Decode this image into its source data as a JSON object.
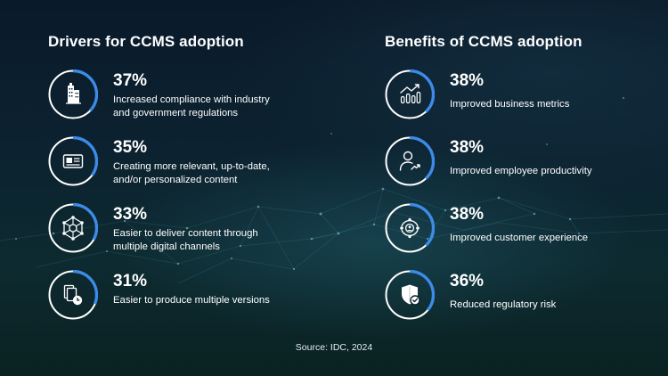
{
  "source": "Source: IDC, 2024",
  "colors": {
    "accent": "#3d8be8",
    "ring_base": "#ffffff"
  },
  "chart_data": [
    {
      "type": "bar",
      "title": "Drivers for CCMS adoption",
      "unit": "%",
      "categories": [
        "Increased compliance with industry and government regulations",
        "Creating more relevant, up-to-date, and/or personalized content",
        "Easier to deliver content through multiple digital channels",
        "Easier to produce multiple versions"
      ],
      "values": [
        37,
        35,
        33,
        31
      ],
      "labels": [
        "37%",
        "35%",
        "33%",
        "31%"
      ],
      "icons": [
        "building-icon",
        "document-card-icon",
        "network-hub-icon",
        "documents-clock-icon"
      ],
      "lines": [
        [
          "Increased compliance with industry",
          "and government regulations"
        ],
        [
          "Creating more relevant, up-to-date,",
          "and/or personalized content"
        ],
        [
          "Easier to deliver content through",
          "multiple digital channels"
        ],
        [
          "Easier to produce multiple versions"
        ]
      ]
    },
    {
      "type": "bar",
      "title": "Benefits of CCMS adoption",
      "unit": "%",
      "categories": [
        "Improved business metrics",
        "Improved employee productivity",
        "Improved customer experience",
        "Reduced regulatory risk"
      ],
      "values": [
        38,
        38,
        38,
        36
      ],
      "labels": [
        "38%",
        "38%",
        "38%",
        "36%"
      ],
      "icons": [
        "bar-chart-trend-icon",
        "person-growth-icon",
        "customer-cycle-icon",
        "shield-check-icon"
      ],
      "lines": [
        [
          "Improved business metrics"
        ],
        [
          "Improved employee productivity"
        ],
        [
          "Improved customer experience"
        ],
        [
          "Reduced regulatory risk"
        ]
      ]
    }
  ]
}
